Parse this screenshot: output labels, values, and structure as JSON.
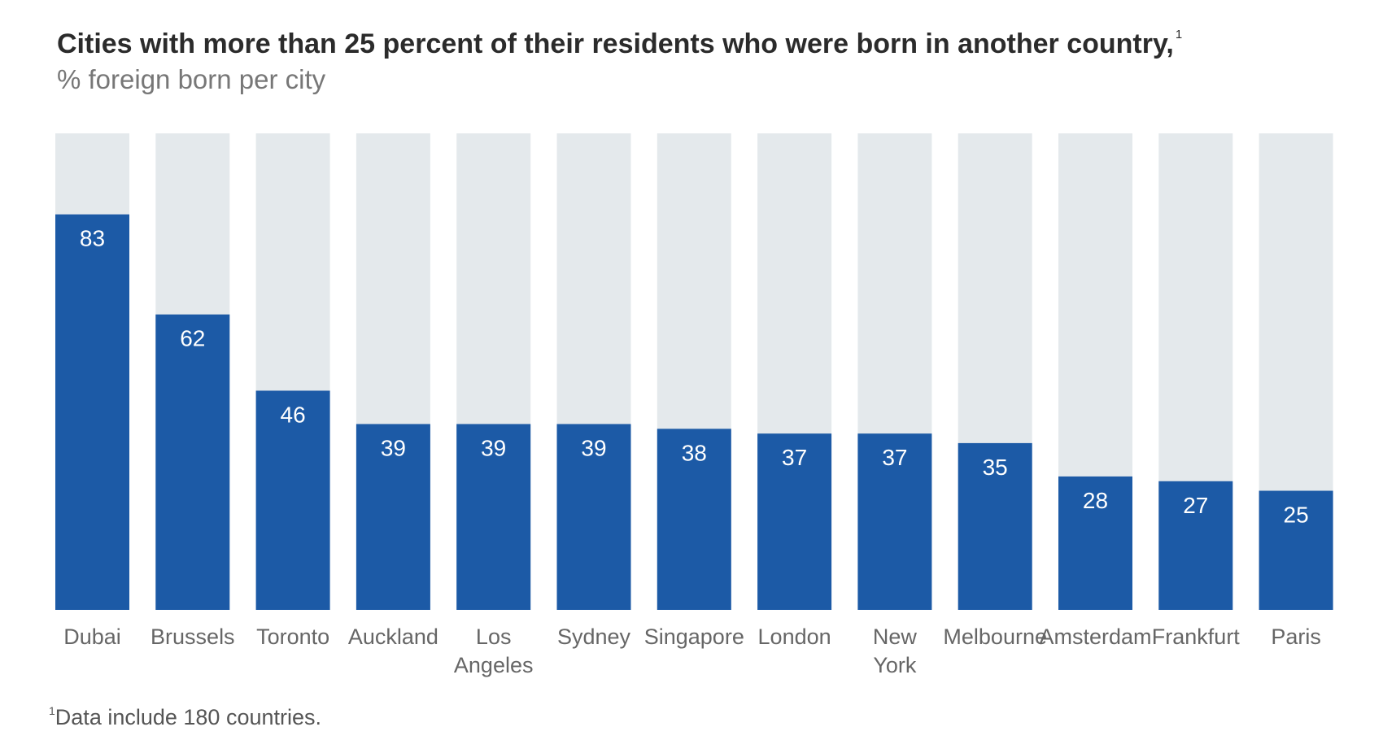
{
  "title": "Cities with more than 25 percent of their residents who were born in another country,",
  "title_footnote_mark": "1",
  "subtitle": "% foreign born per city",
  "footnote_mark": "1",
  "footnote_text": "Data include 180 countries.",
  "colors": {
    "bar": "#1c5aa6",
    "background_bar": "#e4e9ec",
    "value_label": "#ffffff",
    "category_label": "#666666"
  },
  "chart_data": {
    "type": "bar",
    "title": "Cities with more than 25 percent of their residents who were born in another country,",
    "subtitle": "% foreign born per city",
    "xlabel": "",
    "ylabel": "",
    "ylim": [
      0,
      100
    ],
    "grid": false,
    "categories": [
      [
        "Dubai"
      ],
      [
        "Brussels"
      ],
      [
        "Toronto"
      ],
      [
        "Auckland"
      ],
      [
        "Los",
        "Angeles"
      ],
      [
        "Sydney"
      ],
      [
        "Singapore"
      ],
      [
        "London"
      ],
      [
        "New",
        "York"
      ],
      [
        "Melbourne"
      ],
      [
        "Amsterdam"
      ],
      [
        "Frankfurt"
      ],
      [
        "Paris"
      ]
    ],
    "values": [
      83,
      62,
      46,
      39,
      39,
      39,
      38,
      37,
      37,
      35,
      28,
      27,
      25
    ]
  }
}
